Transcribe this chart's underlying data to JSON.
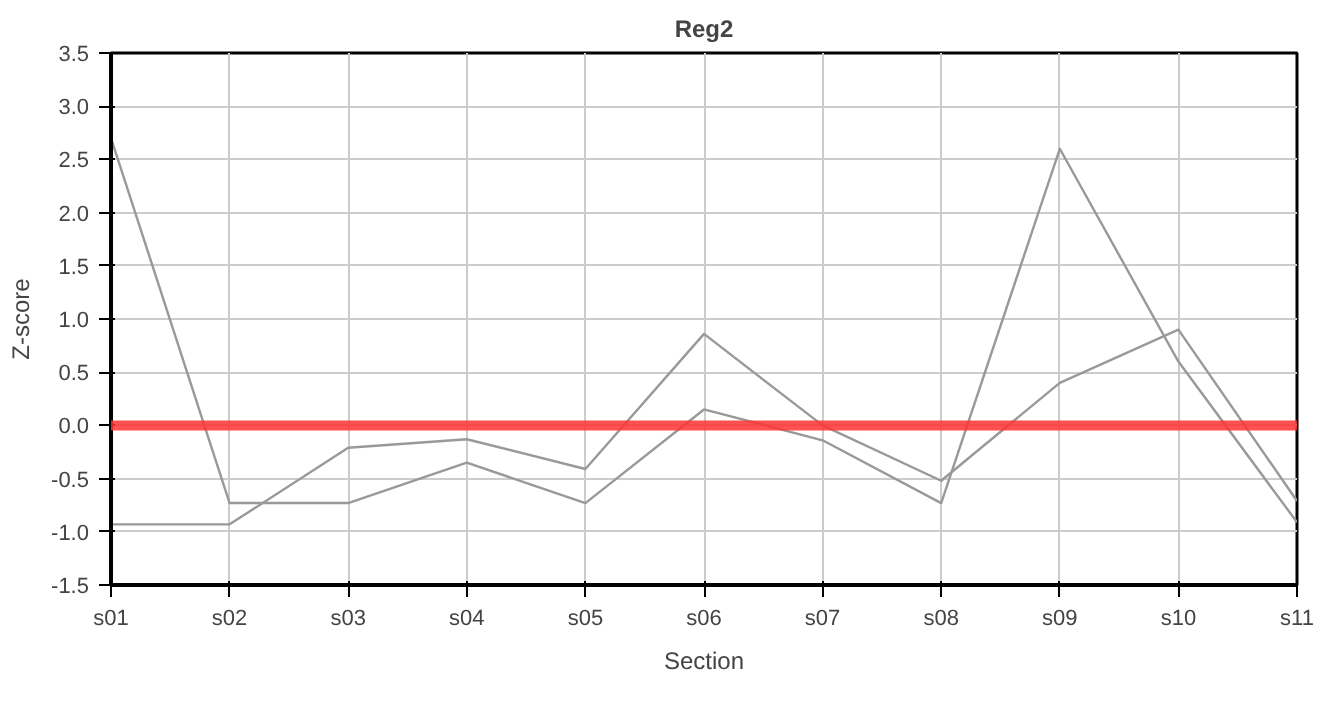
{
  "chart_data": {
    "type": "line",
    "title": "Reg2",
    "xlabel": "Section",
    "ylabel": "Z-score",
    "categories": [
      "s01",
      "s02",
      "s03",
      "s04",
      "s05",
      "s06",
      "s07",
      "s08",
      "s09",
      "s10",
      "s11"
    ],
    "series": [
      {
        "color": "#999999",
        "values": [
          2.7,
          -0.73,
          -0.73,
          -0.35,
          -0.73,
          0.15,
          -0.14,
          -0.73,
          2.6,
          0.6,
          -0.91
        ]
      },
      {
        "color": "#999999",
        "values": [
          -0.93,
          -0.93,
          -0.21,
          -0.13,
          -0.41,
          0.86,
          0.0,
          -0.52,
          0.4,
          0.9,
          -0.71
        ]
      }
    ],
    "ylim": [
      -1.5,
      3.5
    ],
    "yticks": [
      {
        "value": -1.5,
        "label": "-1.5"
      },
      {
        "value": -1.0,
        "label": "-1.0"
      },
      {
        "value": -0.5,
        "label": "-0.5"
      },
      {
        "value": 0,
        "label": "0.0"
      },
      {
        "value": 0.5,
        "label": "0.5"
      },
      {
        "value": 1.0,
        "label": "1.0"
      },
      {
        "value": 1.5,
        "label": "1.5"
      },
      {
        "value": 2.0,
        "label": "2.0"
      },
      {
        "value": 2.5,
        "label": "2.5"
      },
      {
        "value": 3.0,
        "label": "3.0"
      },
      {
        "value": 3.5,
        "label": "3.5"
      }
    ],
    "ref_lines": [
      {
        "axis": "y",
        "value": 0,
        "color": "#ff3333"
      }
    ],
    "grid": true
  }
}
